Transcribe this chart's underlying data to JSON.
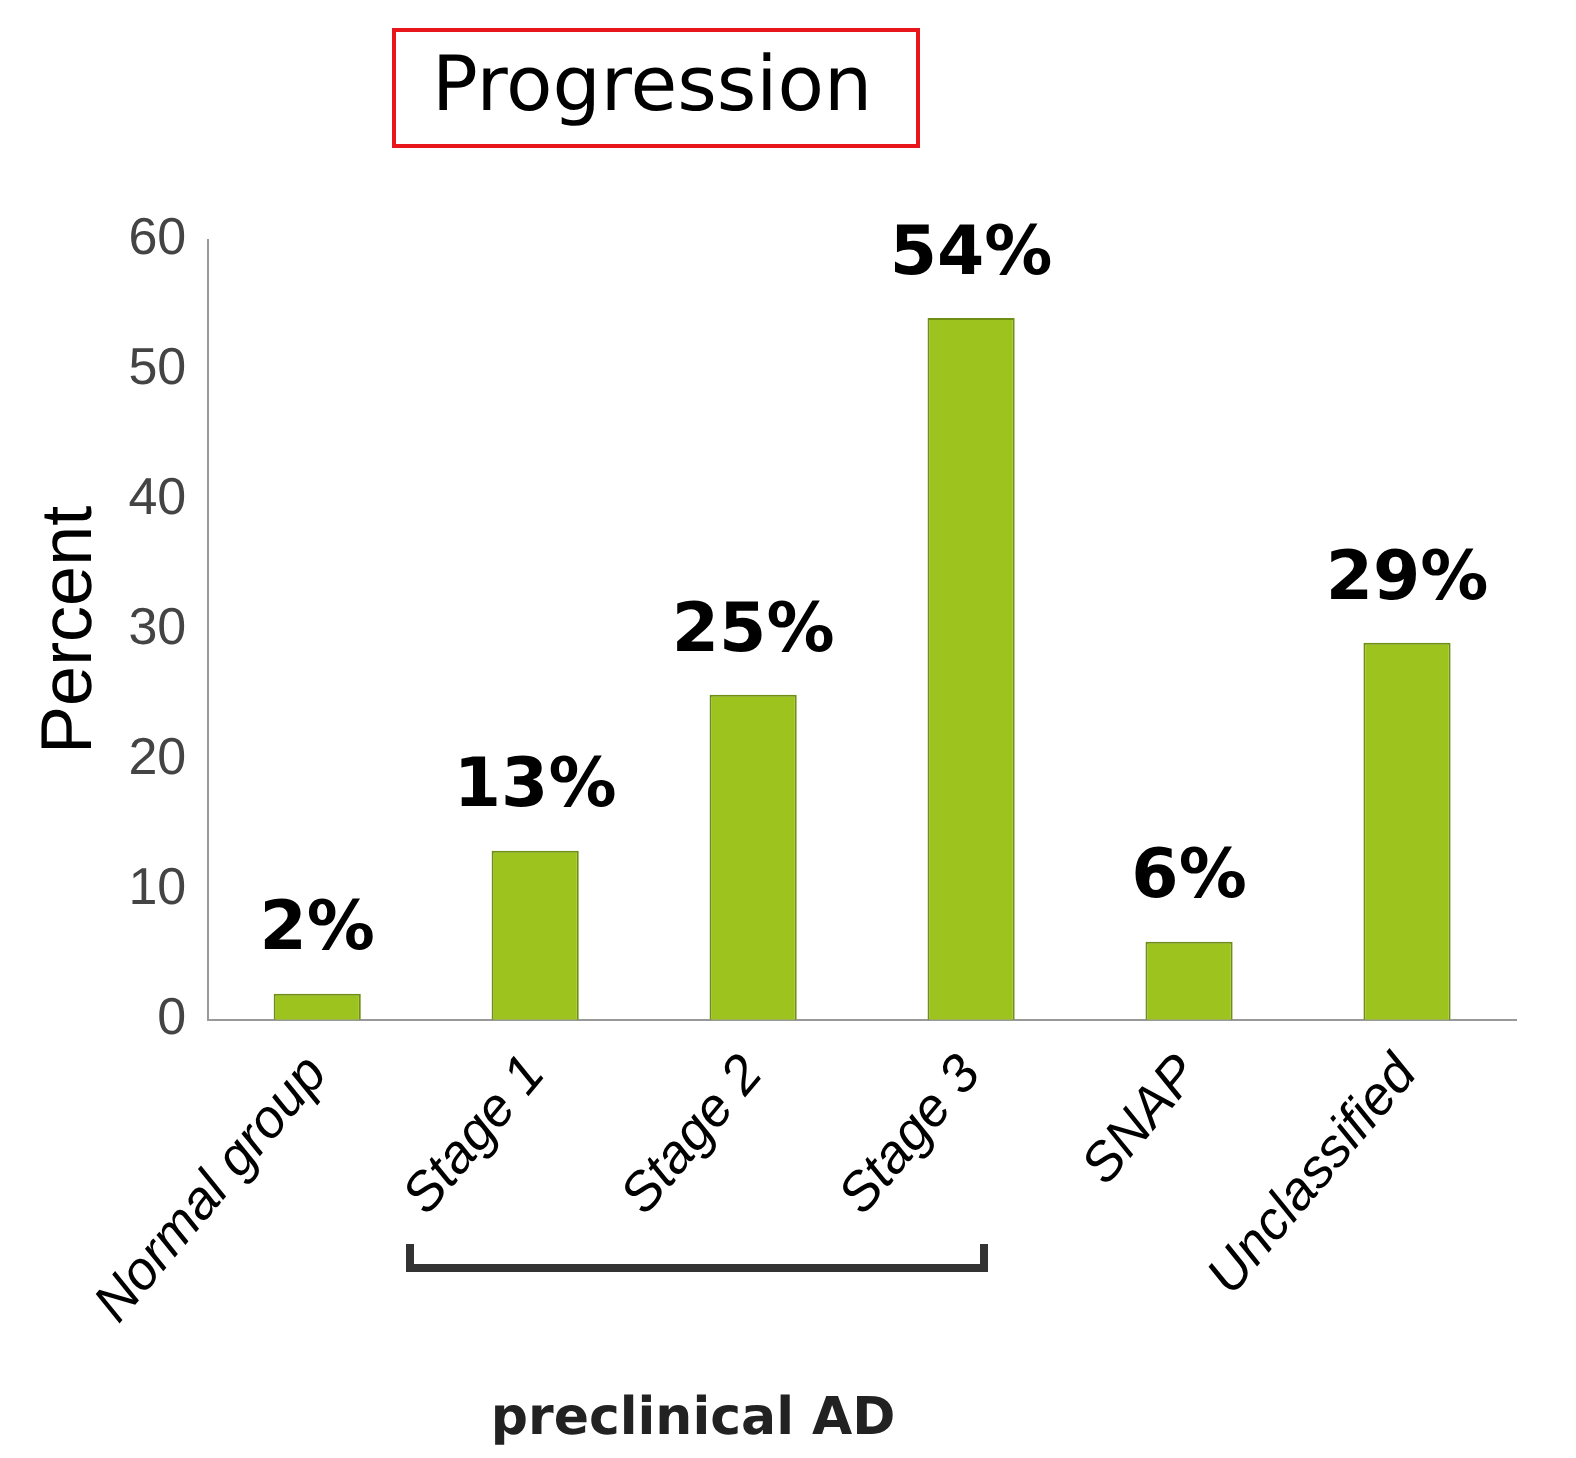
{
  "chart_data": {
    "type": "bar",
    "title": "Progression",
    "categories": [
      "Normal group",
      "Stage 1",
      "Stage 2",
      "Stage 3",
      "SNAP",
      "Unclassified"
    ],
    "values": [
      2,
      13,
      25,
      54,
      6,
      29
    ],
    "value_labels": [
      "2%",
      "13%",
      "25%",
      "54%",
      "6%",
      "29%"
    ],
    "color": "#9dc41e",
    "ylim": [
      0,
      60
    ],
    "yticks": [
      0,
      10,
      20,
      30,
      40,
      50,
      60
    ],
    "ylabel": "Percent",
    "grid": false,
    "legend": false,
    "annotations": [
      "preclinical AD"
    ]
  }
}
